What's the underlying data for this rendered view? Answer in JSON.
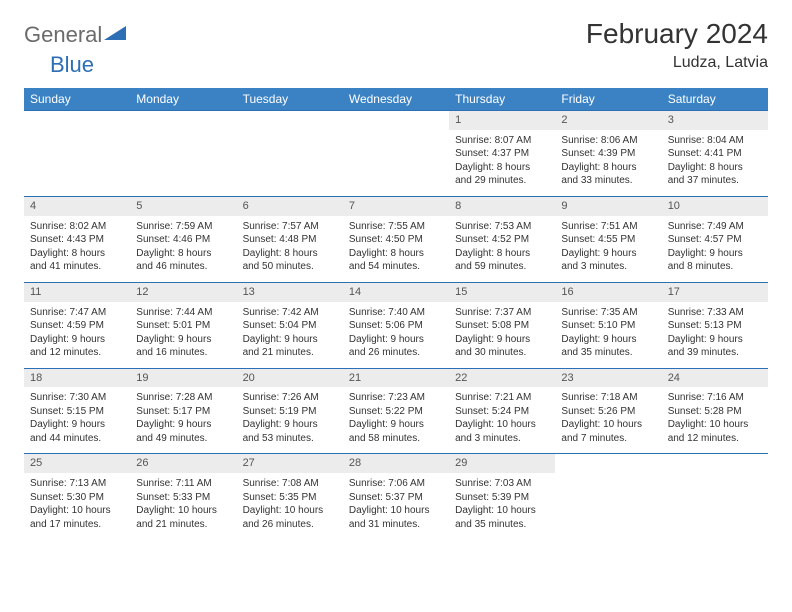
{
  "logo": {
    "text1": "General",
    "text2": "Blue"
  },
  "title": "February 2024",
  "location": "Ludza, Latvia",
  "colors": {
    "header_bg": "#3b82c4",
    "border": "#2d6fb5",
    "daynum_bg": "#ececec",
    "logo_gray": "#6b6b6b",
    "logo_blue": "#2d6fb5"
  },
  "weekdays": [
    "Sunday",
    "Monday",
    "Tuesday",
    "Wednesday",
    "Thursday",
    "Friday",
    "Saturday"
  ],
  "weeks": [
    [
      null,
      null,
      null,
      null,
      {
        "n": "1",
        "sr": "Sunrise: 8:07 AM",
        "ss": "Sunset: 4:37 PM",
        "d1": "Daylight: 8 hours",
        "d2": "and 29 minutes."
      },
      {
        "n": "2",
        "sr": "Sunrise: 8:06 AM",
        "ss": "Sunset: 4:39 PM",
        "d1": "Daylight: 8 hours",
        "d2": "and 33 minutes."
      },
      {
        "n": "3",
        "sr": "Sunrise: 8:04 AM",
        "ss": "Sunset: 4:41 PM",
        "d1": "Daylight: 8 hours",
        "d2": "and 37 minutes."
      }
    ],
    [
      {
        "n": "4",
        "sr": "Sunrise: 8:02 AM",
        "ss": "Sunset: 4:43 PM",
        "d1": "Daylight: 8 hours",
        "d2": "and 41 minutes."
      },
      {
        "n": "5",
        "sr": "Sunrise: 7:59 AM",
        "ss": "Sunset: 4:46 PM",
        "d1": "Daylight: 8 hours",
        "d2": "and 46 minutes."
      },
      {
        "n": "6",
        "sr": "Sunrise: 7:57 AM",
        "ss": "Sunset: 4:48 PM",
        "d1": "Daylight: 8 hours",
        "d2": "and 50 minutes."
      },
      {
        "n": "7",
        "sr": "Sunrise: 7:55 AM",
        "ss": "Sunset: 4:50 PM",
        "d1": "Daylight: 8 hours",
        "d2": "and 54 minutes."
      },
      {
        "n": "8",
        "sr": "Sunrise: 7:53 AM",
        "ss": "Sunset: 4:52 PM",
        "d1": "Daylight: 8 hours",
        "d2": "and 59 minutes."
      },
      {
        "n": "9",
        "sr": "Sunrise: 7:51 AM",
        "ss": "Sunset: 4:55 PM",
        "d1": "Daylight: 9 hours",
        "d2": "and 3 minutes."
      },
      {
        "n": "10",
        "sr": "Sunrise: 7:49 AM",
        "ss": "Sunset: 4:57 PM",
        "d1": "Daylight: 9 hours",
        "d2": "and 8 minutes."
      }
    ],
    [
      {
        "n": "11",
        "sr": "Sunrise: 7:47 AM",
        "ss": "Sunset: 4:59 PM",
        "d1": "Daylight: 9 hours",
        "d2": "and 12 minutes."
      },
      {
        "n": "12",
        "sr": "Sunrise: 7:44 AM",
        "ss": "Sunset: 5:01 PM",
        "d1": "Daylight: 9 hours",
        "d2": "and 16 minutes."
      },
      {
        "n": "13",
        "sr": "Sunrise: 7:42 AM",
        "ss": "Sunset: 5:04 PM",
        "d1": "Daylight: 9 hours",
        "d2": "and 21 minutes."
      },
      {
        "n": "14",
        "sr": "Sunrise: 7:40 AM",
        "ss": "Sunset: 5:06 PM",
        "d1": "Daylight: 9 hours",
        "d2": "and 26 minutes."
      },
      {
        "n": "15",
        "sr": "Sunrise: 7:37 AM",
        "ss": "Sunset: 5:08 PM",
        "d1": "Daylight: 9 hours",
        "d2": "and 30 minutes."
      },
      {
        "n": "16",
        "sr": "Sunrise: 7:35 AM",
        "ss": "Sunset: 5:10 PM",
        "d1": "Daylight: 9 hours",
        "d2": "and 35 minutes."
      },
      {
        "n": "17",
        "sr": "Sunrise: 7:33 AM",
        "ss": "Sunset: 5:13 PM",
        "d1": "Daylight: 9 hours",
        "d2": "and 39 minutes."
      }
    ],
    [
      {
        "n": "18",
        "sr": "Sunrise: 7:30 AM",
        "ss": "Sunset: 5:15 PM",
        "d1": "Daylight: 9 hours",
        "d2": "and 44 minutes."
      },
      {
        "n": "19",
        "sr": "Sunrise: 7:28 AM",
        "ss": "Sunset: 5:17 PM",
        "d1": "Daylight: 9 hours",
        "d2": "and 49 minutes."
      },
      {
        "n": "20",
        "sr": "Sunrise: 7:26 AM",
        "ss": "Sunset: 5:19 PM",
        "d1": "Daylight: 9 hours",
        "d2": "and 53 minutes."
      },
      {
        "n": "21",
        "sr": "Sunrise: 7:23 AM",
        "ss": "Sunset: 5:22 PM",
        "d1": "Daylight: 9 hours",
        "d2": "and 58 minutes."
      },
      {
        "n": "22",
        "sr": "Sunrise: 7:21 AM",
        "ss": "Sunset: 5:24 PM",
        "d1": "Daylight: 10 hours",
        "d2": "and 3 minutes."
      },
      {
        "n": "23",
        "sr": "Sunrise: 7:18 AM",
        "ss": "Sunset: 5:26 PM",
        "d1": "Daylight: 10 hours",
        "d2": "and 7 minutes."
      },
      {
        "n": "24",
        "sr": "Sunrise: 7:16 AM",
        "ss": "Sunset: 5:28 PM",
        "d1": "Daylight: 10 hours",
        "d2": "and 12 minutes."
      }
    ],
    [
      {
        "n": "25",
        "sr": "Sunrise: 7:13 AM",
        "ss": "Sunset: 5:30 PM",
        "d1": "Daylight: 10 hours",
        "d2": "and 17 minutes."
      },
      {
        "n": "26",
        "sr": "Sunrise: 7:11 AM",
        "ss": "Sunset: 5:33 PM",
        "d1": "Daylight: 10 hours",
        "d2": "and 21 minutes."
      },
      {
        "n": "27",
        "sr": "Sunrise: 7:08 AM",
        "ss": "Sunset: 5:35 PM",
        "d1": "Daylight: 10 hours",
        "d2": "and 26 minutes."
      },
      {
        "n": "28",
        "sr": "Sunrise: 7:06 AM",
        "ss": "Sunset: 5:37 PM",
        "d1": "Daylight: 10 hours",
        "d2": "and 31 minutes."
      },
      {
        "n": "29",
        "sr": "Sunrise: 7:03 AM",
        "ss": "Sunset: 5:39 PM",
        "d1": "Daylight: 10 hours",
        "d2": "and 35 minutes."
      },
      null,
      null
    ]
  ]
}
